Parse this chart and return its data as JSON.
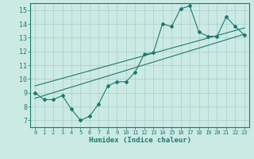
{
  "main_x": [
    0,
    1,
    2,
    3,
    4,
    5,
    6,
    7,
    8,
    9,
    10,
    11,
    12,
    13,
    14,
    15,
    16,
    17,
    18,
    19,
    20,
    21,
    22,
    23
  ],
  "main_y": [
    9.0,
    8.5,
    8.5,
    8.8,
    7.8,
    7.0,
    7.3,
    8.2,
    9.5,
    9.8,
    9.8,
    10.5,
    11.8,
    11.9,
    14.0,
    13.8,
    15.1,
    15.3,
    13.4,
    13.1,
    13.1,
    14.5,
    13.8,
    13.2
  ],
  "line1_x": [
    0,
    23
  ],
  "line1_y": [
    8.6,
    13.25
  ],
  "line2_x": [
    0,
    23
  ],
  "line2_y": [
    9.5,
    13.7
  ],
  "color": "#1a7a6e",
  "bg_color": "#cceae4",
  "grid_color": "#aacccc",
  "xlabel": "Humidex (Indice chaleur)",
  "xlim": [
    -0.5,
    23.5
  ],
  "ylim": [
    6.5,
    15.5
  ],
  "xticks": [
    0,
    1,
    2,
    3,
    4,
    5,
    6,
    7,
    8,
    9,
    10,
    11,
    12,
    13,
    14,
    15,
    16,
    17,
    18,
    19,
    20,
    21,
    22,
    23
  ],
  "yticks": [
    7,
    8,
    9,
    10,
    11,
    12,
    13,
    14,
    15
  ],
  "tick_color": "#1a7a6e",
  "label_fontsize": 5.0,
  "ylabel_fontsize": 6.0,
  "xlabel_fontsize": 6.5
}
